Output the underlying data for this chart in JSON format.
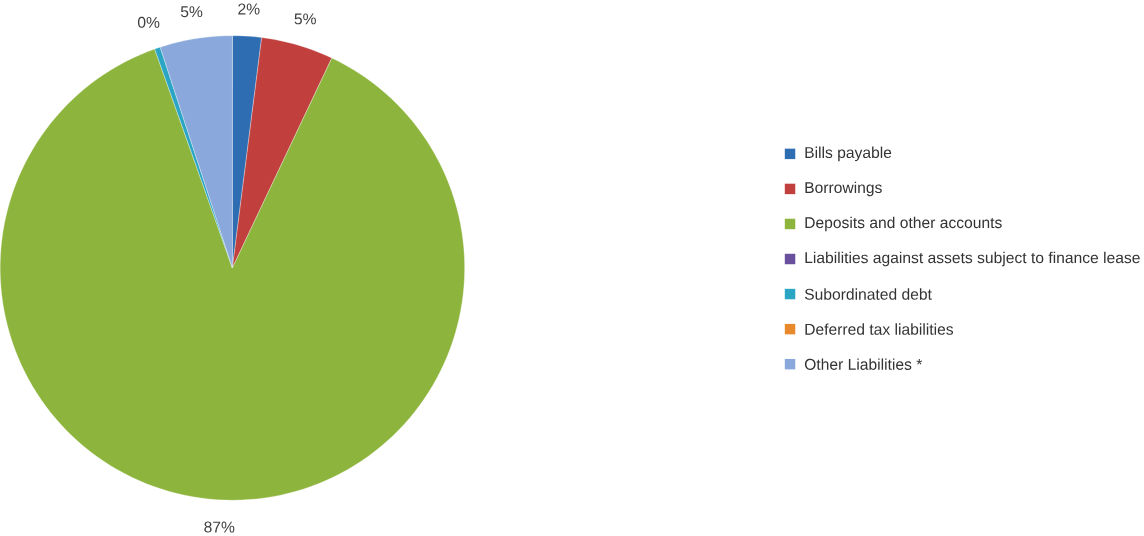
{
  "chart_data": {
    "type": "pie",
    "categories": [
      "Bills payable",
      "Borrowings",
      "Deposits and other accounts",
      "Liabilities against assets subject to finance lease",
      "Subordinated debt",
      "Deferred tax liabilities",
      "Other Liabilities *"
    ],
    "values": [
      2,
      5,
      87,
      0,
      0.4,
      0,
      5
    ],
    "value_labels": [
      "2%",
      "5%",
      "87%",
      null,
      "0%",
      null,
      "5%"
    ],
    "colors": [
      "#2f6db3",
      "#c1403d",
      "#8db43c",
      "#6a4f9c",
      "#2aa5c4",
      "#e88a2b",
      "#8aa8db"
    ],
    "legend": "right"
  }
}
